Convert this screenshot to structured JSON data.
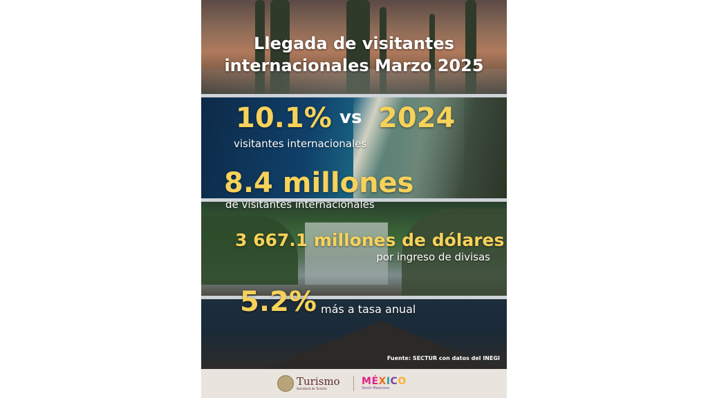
{
  "title": {
    "line1": "Llegada de visitantes",
    "line2": "internacionales Marzo 2025"
  },
  "stat1": {
    "value": "10.1%",
    "vs": "vs",
    "year": "2024",
    "caption": "visitantes internacionales"
  },
  "stat2": {
    "value": "8.4 millones",
    "caption": "de visitantes internacionales"
  },
  "stat3": {
    "value": "3 667.1 millones de dólares",
    "caption": "por ingreso de divisas"
  },
  "stat4": {
    "value": "5.2%",
    "caption": "más a tasa anual"
  },
  "source": "Fuente: SECTUR con datos del INEGI",
  "footer": {
    "turismo": "Turismo",
    "turismo_sub": "Secretaría de Turismo",
    "mexico_letters": [
      "M",
      "É",
      "X",
      "I",
      "C",
      "O"
    ],
    "mexico_sub": "Sentir Mexicano"
  },
  "colors": {
    "highlight": "#f7d25a",
    "mexico": [
      "#e0218a",
      "#e0218a",
      "#f26a21",
      "#1ba39c",
      "#7b3fa0",
      "#f9b233"
    ]
  }
}
